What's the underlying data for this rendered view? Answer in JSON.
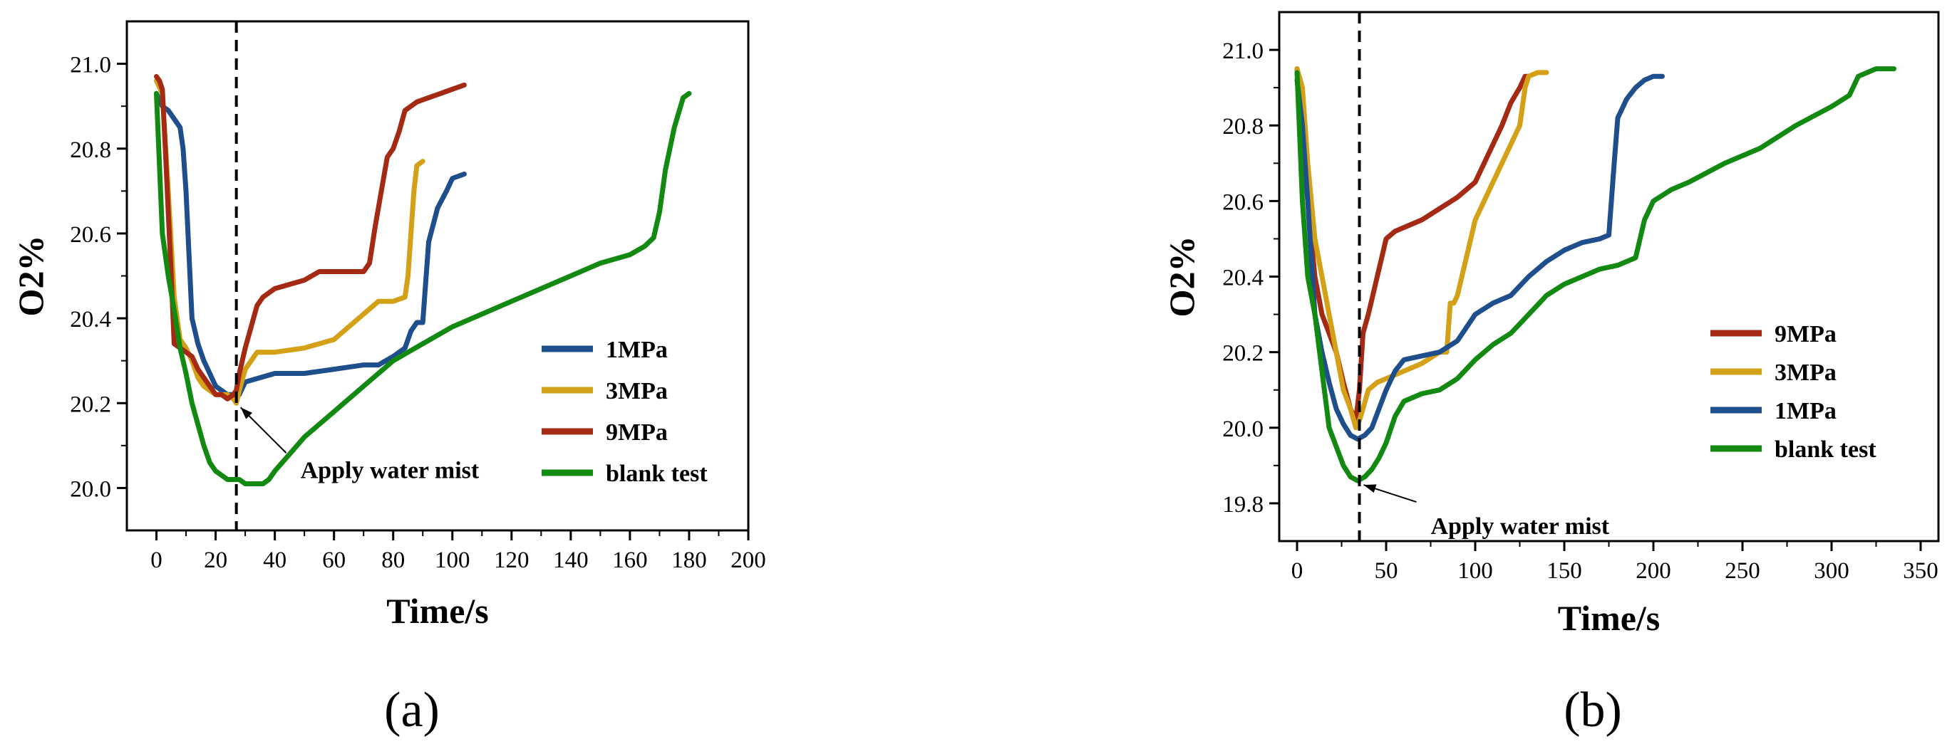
{
  "colors": {
    "1MPa": "#1f4e8c",
    "3MPa": "#d4a017",
    "9MPa": "#a52a14",
    "blank test": "#128a12",
    "axis": "#000000"
  },
  "chart_data": [
    {
      "type": "line",
      "panel_label": "(a)",
      "xlabel": "Time/s",
      "ylabel": "O2%",
      "xlim": [
        -10,
        200
      ],
      "ylim": [
        19.9,
        21.1
      ],
      "xticks": [
        0,
        20,
        40,
        60,
        80,
        100,
        120,
        140,
        160,
        180,
        200
      ],
      "yticks": [
        20.0,
        20.2,
        20.4,
        20.6,
        20.8,
        21.0
      ],
      "ytick_labels": [
        "20.0",
        "20.2",
        "20.4",
        "20.6",
        "20.8",
        "21.0"
      ],
      "water_mist_time": 27,
      "annotation": {
        "text": "Apply water mist",
        "x": 27,
        "y": 20.2
      },
      "legend_order": [
        "1MPa",
        "3MPa",
        "9MPa",
        "blank test"
      ],
      "series": [
        {
          "name": "1MPa",
          "x": [
            0,
            2,
            4,
            6,
            8,
            9,
            10,
            11,
            12,
            14,
            16,
            18,
            20,
            22,
            24,
            26,
            28,
            30,
            35,
            40,
            50,
            60,
            70,
            75,
            80,
            84,
            86,
            88,
            90,
            92,
            95,
            98,
            100,
            104
          ],
          "y": [
            20.93,
            20.9,
            20.89,
            20.87,
            20.85,
            20.8,
            20.7,
            20.55,
            20.4,
            20.34,
            20.3,
            20.27,
            20.24,
            20.23,
            20.22,
            20.22,
            20.22,
            20.25,
            20.26,
            20.27,
            20.27,
            20.28,
            20.29,
            20.29,
            20.31,
            20.33,
            20.37,
            20.39,
            20.39,
            20.58,
            20.66,
            20.7,
            20.73,
            20.74
          ]
        },
        {
          "name": "3MPa",
          "x": [
            0,
            2,
            4,
            6,
            8,
            10,
            12,
            14,
            16,
            18,
            20,
            22,
            24,
            26,
            27,
            28,
            30,
            32,
            34,
            40,
            50,
            60,
            65,
            70,
            75,
            80,
            84,
            85,
            86,
            87,
            88,
            90
          ],
          "y": [
            20.96,
            20.93,
            20.7,
            20.45,
            20.35,
            20.33,
            20.3,
            20.26,
            20.24,
            20.23,
            20.22,
            20.22,
            20.22,
            20.21,
            20.2,
            20.23,
            20.28,
            20.3,
            20.32,
            20.32,
            20.33,
            20.35,
            20.38,
            20.41,
            20.44,
            20.44,
            20.45,
            20.5,
            20.6,
            20.7,
            20.76,
            20.77
          ]
        },
        {
          "name": "9MPa",
          "x": [
            0,
            1,
            2,
            3,
            4,
            5,
            6,
            8,
            10,
            12,
            14,
            16,
            18,
            20,
            22,
            24,
            26,
            27,
            28,
            30,
            32,
            34,
            36,
            38,
            40,
            45,
            50,
            55,
            60,
            65,
            70,
            72,
            74,
            76,
            78,
            80,
            82,
            84,
            86,
            88,
            92,
            96,
            100,
            104
          ],
          "y": [
            20.97,
            20.96,
            20.94,
            20.8,
            20.65,
            20.5,
            20.34,
            20.33,
            20.32,
            20.31,
            20.28,
            20.26,
            20.24,
            20.22,
            20.22,
            20.21,
            20.22,
            20.23,
            20.27,
            20.33,
            20.38,
            20.43,
            20.45,
            20.46,
            20.47,
            20.48,
            20.49,
            20.51,
            20.51,
            20.51,
            20.51,
            20.53,
            20.62,
            20.7,
            20.78,
            20.8,
            20.84,
            20.89,
            20.9,
            20.91,
            20.92,
            20.93,
            20.94,
            20.95
          ]
        },
        {
          "name": "blank test",
          "x": [
            0,
            2,
            4,
            6,
            8,
            10,
            12,
            14,
            16,
            18,
            20,
            22,
            24,
            26,
            28,
            30,
            32,
            34,
            36,
            38,
            40,
            45,
            50,
            55,
            60,
            70,
            80,
            90,
            100,
            110,
            120,
            130,
            140,
            150,
            160,
            165,
            168,
            170,
            172,
            175,
            178,
            180
          ],
          "y": [
            20.93,
            20.6,
            20.5,
            20.42,
            20.33,
            20.27,
            20.2,
            20.15,
            20.1,
            20.06,
            20.04,
            20.03,
            20.02,
            20.02,
            20.02,
            20.01,
            20.01,
            20.01,
            20.01,
            20.02,
            20.04,
            20.08,
            20.12,
            20.15,
            20.18,
            20.24,
            20.3,
            20.34,
            20.38,
            20.41,
            20.44,
            20.47,
            20.5,
            20.53,
            20.55,
            20.57,
            20.59,
            20.65,
            20.75,
            20.85,
            20.92,
            20.93
          ]
        }
      ]
    },
    {
      "type": "line",
      "panel_label": "(b)",
      "xlabel": "Time/s",
      "ylabel": "O2%",
      "xlim": [
        -10,
        360
      ],
      "ylim": [
        19.7,
        21.1
      ],
      "xticks": [
        0,
        50,
        100,
        150,
        200,
        250,
        300,
        350
      ],
      "yticks": [
        19.8,
        20.0,
        20.2,
        20.4,
        20.6,
        20.8,
        21.0
      ],
      "ytick_labels": [
        "19.8",
        "20.0",
        "20.2",
        "20.4",
        "20.6",
        "20.8",
        "21.0"
      ],
      "water_mist_time": 35,
      "annotation": {
        "text": "Apply water mist",
        "x": 35,
        "y": 19.86
      },
      "legend_order": [
        "9MPa",
        "3MPa",
        "1MPa",
        "blank test"
      ],
      "series": [
        {
          "name": "9MPa",
          "x": [
            0,
            3,
            6,
            10,
            14,
            18,
            22,
            26,
            30,
            33,
            35,
            37,
            40,
            45,
            50,
            55,
            60,
            70,
            80,
            90,
            100,
            110,
            115,
            120,
            125,
            128,
            130
          ],
          "y": [
            20.95,
            20.8,
            20.6,
            20.4,
            20.3,
            20.25,
            20.2,
            20.12,
            20.05,
            20.02,
            20.1,
            20.25,
            20.3,
            20.4,
            20.5,
            20.52,
            20.53,
            20.55,
            20.58,
            20.61,
            20.65,
            20.75,
            20.8,
            20.86,
            20.9,
            20.93,
            20.93
          ]
        },
        {
          "name": "3MPa",
          "x": [
            0,
            3,
            6,
            10,
            14,
            18,
            22,
            26,
            30,
            33,
            35,
            37,
            40,
            45,
            50,
            60,
            70,
            80,
            84,
            86,
            88,
            90,
            95,
            100,
            105,
            110,
            115,
            120,
            125,
            128,
            130,
            135,
            140
          ],
          "y": [
            20.95,
            20.9,
            20.7,
            20.5,
            20.4,
            20.3,
            20.2,
            20.1,
            20.05,
            20.0,
            20.02,
            20.05,
            20.1,
            20.12,
            20.13,
            20.15,
            20.17,
            20.2,
            20.2,
            20.33,
            20.33,
            20.35,
            20.45,
            20.55,
            20.6,
            20.65,
            20.7,
            20.75,
            20.8,
            20.9,
            20.93,
            20.94,
            20.94
          ]
        },
        {
          "name": "1MPa",
          "x": [
            0,
            3,
            6,
            10,
            14,
            18,
            22,
            26,
            30,
            34,
            38,
            42,
            46,
            50,
            55,
            60,
            70,
            80,
            90,
            100,
            110,
            120,
            130,
            140,
            150,
            160,
            170,
            175,
            178,
            180,
            185,
            190,
            195,
            200,
            205
          ],
          "y": [
            20.92,
            20.8,
            20.6,
            20.3,
            20.2,
            20.12,
            20.05,
            20.01,
            19.98,
            19.97,
            19.98,
            20.0,
            20.05,
            20.1,
            20.15,
            20.18,
            20.19,
            20.2,
            20.23,
            20.3,
            20.33,
            20.35,
            20.4,
            20.44,
            20.47,
            20.49,
            20.5,
            20.51,
            20.7,
            20.82,
            20.87,
            20.9,
            20.92,
            20.93,
            20.93
          ]
        },
        {
          "name": "blank test",
          "x": [
            0,
            3,
            6,
            10,
            14,
            18,
            22,
            26,
            30,
            34,
            38,
            42,
            46,
            50,
            55,
            60,
            70,
            80,
            90,
            100,
            110,
            120,
            130,
            140,
            150,
            160,
            170,
            180,
            190,
            195,
            200,
            210,
            220,
            240,
            260,
            280,
            300,
            310,
            315,
            320,
            325,
            330,
            335
          ],
          "y": [
            20.94,
            20.6,
            20.4,
            20.3,
            20.15,
            20.0,
            19.95,
            19.9,
            19.87,
            19.86,
            19.87,
            19.89,
            19.92,
            19.96,
            20.03,
            20.07,
            20.09,
            20.1,
            20.13,
            20.18,
            20.22,
            20.25,
            20.3,
            20.35,
            20.38,
            20.4,
            20.42,
            20.43,
            20.45,
            20.55,
            20.6,
            20.63,
            20.65,
            20.7,
            20.74,
            20.8,
            20.85,
            20.88,
            20.93,
            20.94,
            20.95,
            20.95,
            20.95
          ]
        }
      ]
    }
  ]
}
